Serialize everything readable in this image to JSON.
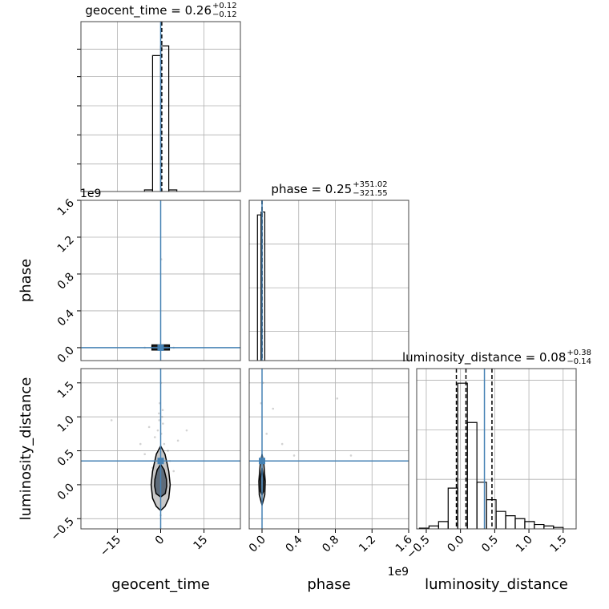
{
  "chart_data": [
    {
      "type": "histogram",
      "title": "geocent_time = 0.26",
      "title_upper": "+0.12",
      "title_lower": "−0.12",
      "bins": [
        -5.6,
        -2.8,
        0,
        2.8,
        5.6
      ],
      "counts": [
        0.01,
        0.84,
        0.9,
        0.01
      ],
      "xlim": [
        -27.6,
        27.6
      ],
      "xticks": [
        -15,
        0,
        15
      ],
      "ylim": [
        0,
        1.05
      ],
      "yticks": [
        0.17,
        0.35,
        0.53,
        0.71,
        0.88
      ],
      "quantiles": [
        0.14,
        0.26,
        0.38
      ],
      "truth": 0,
      "color": "#000000",
      "truth_color": "#4682b4",
      "grid": true
    },
    {
      "type": "scatter2d",
      "ylabel": "phase",
      "yoffset": "1e9",
      "xlim": [
        -27.6,
        27.6
      ],
      "xticks": [
        -15,
        0,
        15
      ],
      "ylim": [
        -0.14,
        1.6
      ],
      "yticks": [
        {
          "value": 0,
          "label": "0.0"
        },
        0.4,
        0.8,
        1.2,
        1.6
      ],
      "points": {
        "x": [
          0.2,
          -1.5,
          2,
          -3,
          4.5,
          -5.5
        ],
        "y": [
          0.96,
          0.01,
          0.0,
          0.005,
          0.0,
          0.0
        ]
      },
      "contours": [
        {
          "x": [
            -3,
            3,
            3,
            -3
          ],
          "y": [
            -0.025,
            -0.025,
            0.03,
            0.03
          ],
          "color": "#000000",
          "fill": "#222222"
        }
      ],
      "truths": [
        0,
        0
      ],
      "point_color": "#808080",
      "truth_color": "#4682b4",
      "grid": true
    },
    {
      "type": "histogram",
      "title": "phase = 0.25",
      "title_upper": "+351.02",
      "title_lower": "−321.55",
      "bins": [
        -0.05,
        -0.01,
        0.03
      ],
      "counts": [
        1.0,
        1.02
      ],
      "xlim": [
        -0.14,
        1.6
      ],
      "xticks": [
        0,
        0.4,
        0.8,
        1.2,
        1.6
      ],
      "ylim": [
        0,
        1.1
      ],
      "yticks": [
        0.2,
        0.5,
        0.8
      ],
      "quantiles": [
        -3e-07,
        0,
        4e-07
      ],
      "truth": 0,
      "color": "#000000",
      "truth_color": "#4682b4",
      "grid": true
    },
    {
      "type": "scatter2d",
      "xlabel": "geocent_time",
      "ylabel": "luminosity_distance",
      "xlim": [
        -27.6,
        27.6
      ],
      "xticks": [
        {
          "value": -15,
          "label": "−15"
        },
        0,
        15
      ],
      "ylim": [
        -0.65,
        1.71
      ],
      "yticks": [
        {
          "value": -0.5,
          "label": "−0.5"
        },
        {
          "value": 0,
          "label": "0.0"
        },
        0.5,
        {
          "value": 1,
          "label": "1.0"
        },
        1.5
      ],
      "points": {
        "x": [
          0.5,
          -1,
          1.2,
          -0.3,
          0.8,
          -2,
          2.5,
          -0.6,
          0.2,
          1.5,
          -1.4,
          0.1,
          -4,
          4.5,
          -7,
          6,
          -0.2,
          0.4,
          -0.8,
          1.0,
          0.3,
          -0.5,
          3.2,
          -2.8,
          -17,
          0.7,
          -1.1,
          9,
          -5.5,
          0.0
        ],
        "y": [
          1.0,
          0.8,
          0.6,
          1.2,
          0.9,
          0.7,
          0.5,
          1.05,
          0.75,
          0.4,
          0.45,
          1.5,
          0.85,
          0.2,
          0.6,
          0.65,
          0.3,
          -0.2,
          -0.35,
          -0.1,
          0.15,
          0.95,
          0.35,
          0.25,
          0.95,
          1.1,
          0.2,
          0.8,
          0.45,
          -0.45
        ]
      },
      "contours": [
        {
          "x": [
            0,
            1.5,
            2.8,
            3.3,
            2.8,
            1.5,
            0,
            -1.5,
            -2.8,
            -3.3,
            -2.8,
            -1.5
          ],
          "y": [
            0.57,
            0.45,
            0.2,
            0.0,
            -0.2,
            -0.32,
            -0.38,
            -0.32,
            -0.2,
            0.0,
            0.2,
            0.45
          ],
          "color": "#000000",
          "fill": "#c8c8c8"
        },
        {
          "x": [
            0,
            1.2,
            2,
            2.1,
            1.6,
            0,
            -1.6,
            -2.1,
            -2,
            -1.2
          ],
          "y": [
            0.3,
            0.22,
            0.08,
            -0.02,
            -0.13,
            -0.18,
            -0.13,
            -0.02,
            0.08,
            0.22
          ],
          "color": "#000000",
          "fill": "#5f6b78"
        }
      ],
      "truths": [
        0,
        0.35
      ],
      "point_color": "#808080",
      "truth_color": "#4682b4",
      "grid": true
    },
    {
      "type": "scatter2d",
      "xlabel": "phase",
      "xoffset": "1e9",
      "xlim": [
        -0.14,
        1.6
      ],
      "xticks": [
        {
          "value": 0,
          "label": "0.0"
        },
        0.4,
        0.8,
        1.2,
        1.6
      ],
      "ylim": [
        -0.65,
        1.71
      ],
      "yticks": [
        -0.5,
        0,
        0.5,
        1,
        1.5
      ],
      "points": {
        "x": [
          0.35,
          0.97,
          0.82,
          0.12,
          0.05,
          0.22,
          -0.01,
          0.01
        ],
        "y": [
          0.43,
          0.43,
          1.27,
          1.12,
          0.75,
          0.6,
          1.2,
          1.5
        ]
      },
      "contours": [
        {
          "x": [
            0,
            0.02,
            0.035,
            0.03,
            0,
            -0.03,
            -0.035,
            -0.02
          ],
          "y": [
            0.45,
            0.3,
            0.05,
            -0.15,
            -0.3,
            -0.15,
            0.05,
            0.3
          ],
          "color": "#000000",
          "fill": "#c8c8c8"
        },
        {
          "x": [
            0,
            0.02,
            0.015,
            0,
            -0.015,
            -0.02
          ],
          "y": [
            0.25,
            0.08,
            -0.1,
            -0.15,
            -0.1,
            0.08
          ],
          "color": "#000000",
          "fill": "#5f6b78"
        }
      ],
      "truths": [
        0,
        0.35
      ],
      "point_color": "#808080",
      "truth_color": "#4682b4",
      "grid": true
    },
    {
      "type": "histogram",
      "title": "luminosity_distance = 0.08",
      "title_upper": "+0.38",
      "title_lower": "−0.14",
      "xlabel": "luminosity_distance",
      "bins": [
        -0.6,
        -0.46,
        -0.32,
        -0.18,
        -0.04,
        0.1,
        0.24,
        0.38,
        0.52,
        0.66,
        0.8,
        0.94,
        1.08,
        1.22,
        1.36,
        1.5
      ],
      "counts": [
        0.5,
        2,
        5,
        28,
        100,
        73,
        32,
        20,
        12,
        9,
        7,
        5,
        3,
        2,
        1
      ],
      "xlim": [
        -0.64,
        1.69
      ],
      "xticks": [
        {
          "value": -0.5,
          "label": "−0.5"
        },
        {
          "value": 0,
          "label": "0.0"
        },
        0.5,
        {
          "value": 1,
          "label": "1.0"
        },
        1.5
      ],
      "ylim": [
        0,
        110
      ],
      "yticks": [
        34,
        68,
        102
      ],
      "quantiles": [
        -0.06,
        0.08,
        0.46
      ],
      "truth": 0.35,
      "color": "#000000",
      "truth_color": "#4682b4",
      "grid": true
    }
  ]
}
